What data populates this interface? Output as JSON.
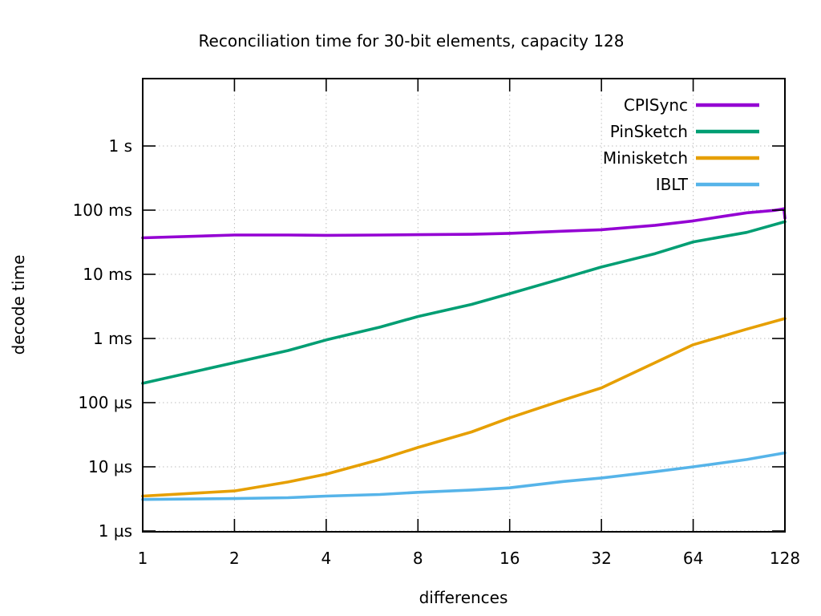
{
  "chart_data": {
    "type": "line",
    "title": "Reconciliation time for 30-bit elements, capacity 128",
    "xlabel": "differences",
    "ylabel": "decode time",
    "x_scale": "log2",
    "y_scale": "log10",
    "grid": true,
    "legend_position": "inside top-right",
    "xlim": [
      1,
      128
    ],
    "x_ticks": [
      1,
      2,
      4,
      8,
      16,
      32,
      64,
      128
    ],
    "y_ticks": [
      {
        "value_us": 1,
        "label": "1 µs"
      },
      {
        "value_us": 10,
        "label": "10 µs"
      },
      {
        "value_us": 100,
        "label": "100 µs"
      },
      {
        "value_us": 1000,
        "label": "1 ms"
      },
      {
        "value_us": 10000,
        "label": "10 ms"
      },
      {
        "value_us": 100000,
        "label": "100 ms"
      },
      {
        "value_us": 1000000,
        "label": "1 s"
      }
    ],
    "ylim_log10_us": [
      -0.0125,
      7.05
    ],
    "colors": {
      "axis": "#000000",
      "grid": "#bdbdbd",
      "background": "#ffffff"
    },
    "series": [
      {
        "name": "CPISync",
        "color": "#9400d3",
        "x": [
          1,
          2,
          3,
          4,
          6,
          8,
          12,
          16,
          24,
          32,
          48,
          64,
          80,
          96,
          112,
          118,
          124,
          127,
          128
        ],
        "values_us": [
          37000,
          41000,
          41000,
          40500,
          41000,
          41500,
          42000,
          43500,
          47000,
          49500,
          58000,
          68000,
          80000,
          91000,
          97000,
          99000,
          103000,
          105000,
          75000
        ]
      },
      {
        "name": "PinSketch",
        "color": "#009e73",
        "x": [
          1,
          2,
          3,
          4,
          6,
          8,
          12,
          16,
          24,
          32,
          48,
          64,
          96,
          128
        ],
        "values_us": [
          200,
          420,
          650,
          950,
          1500,
          2200,
          3400,
          5000,
          8700,
          13000,
          21000,
          32000,
          45000,
          66000
        ]
      },
      {
        "name": "Minisketch",
        "color": "#e69f00",
        "x": [
          1,
          2,
          3,
          4,
          6,
          8,
          12,
          16,
          24,
          32,
          48,
          64,
          96,
          128
        ],
        "values_us": [
          3.5,
          4.2,
          5.8,
          7.7,
          13,
          20,
          35,
          58,
          110,
          170,
          420,
          800,
          1400,
          2050
        ]
      },
      {
        "name": "IBLT",
        "color": "#56b4e9",
        "x": [
          1,
          2,
          3,
          4,
          6,
          8,
          12,
          16,
          24,
          32,
          48,
          64,
          96,
          128
        ],
        "values_us": [
          3.1,
          3.2,
          3.3,
          3.5,
          3.7,
          4.0,
          4.35,
          4.7,
          5.9,
          6.7,
          8.4,
          10,
          13,
          16.5
        ]
      }
    ]
  }
}
